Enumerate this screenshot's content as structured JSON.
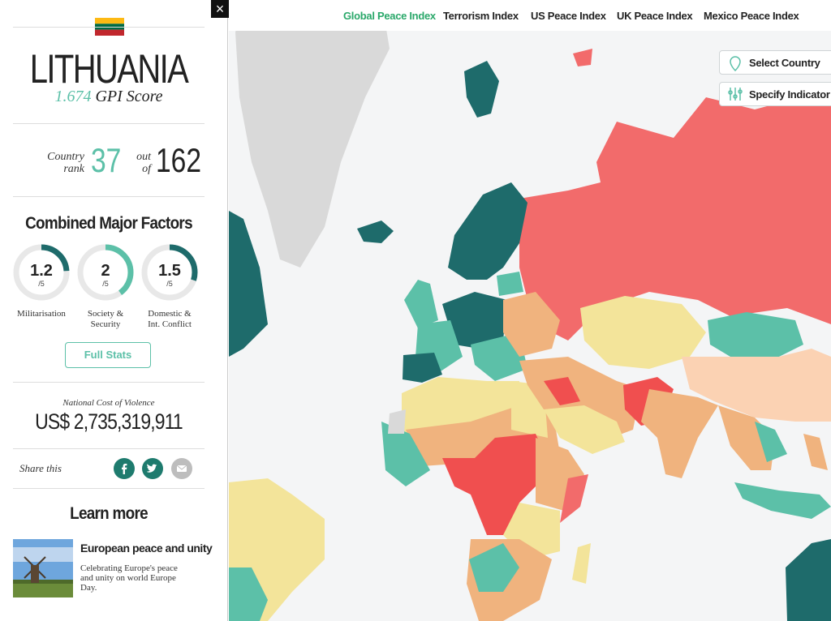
{
  "nav": [
    "Global Peace Index",
    "Terrorism Index",
    "US Peace Index",
    "UK Peace Index",
    "Mexico Peace Index"
  ],
  "map_buttons": [
    "Select Country",
    "Specify Indicator"
  ],
  "close": "×",
  "sidebar": {
    "country": "LITHUANIA",
    "gpi_score": "1.674",
    "gpi_label": "GPI Score",
    "rank_label": [
      "Country",
      "rank"
    ],
    "rank": "37",
    "out_of_label": [
      "out",
      "of"
    ],
    "total": "162",
    "factors_title": "Combined Major Factors",
    "factors": [
      {
        "value": 1.2,
        "scale": {
          "value": 5,
          "label": "/5"
        },
        "label": [
          "Militarisation"
        ]
      },
      {
        "value": 2,
        "scale": {
          "value": 5,
          "label": "/5"
        },
        "label": [
          "Society &",
          "Security"
        ]
      },
      {
        "value": 1.5,
        "scale": {
          "value": 5,
          "label": "/5"
        },
        "label": [
          "Domestic &",
          "Int. Conflict"
        ]
      }
    ],
    "full_stats": "Full Stats",
    "cost_label": "National Cost of Violence",
    "cost": "US$ 2,735,319,911",
    "share_label": "Share this",
    "learn_more": "Learn more",
    "article_title": "European peace and unity",
    "article_text": [
      "Celebrating Europe's peace",
      "and unity on world Europe",
      "Day."
    ]
  }
}
